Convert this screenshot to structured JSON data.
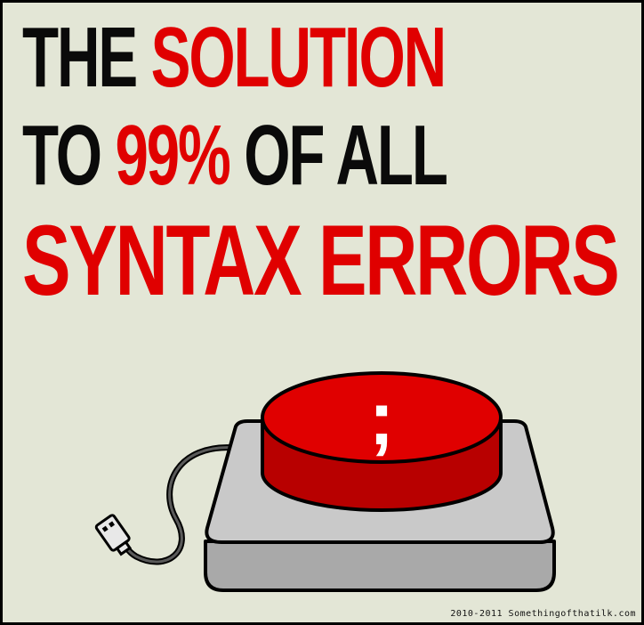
{
  "headline": {
    "line1": {
      "w1": "THE",
      "w2": "SOLUTION"
    },
    "line2": {
      "w1": "TO",
      "w2": "99%",
      "w3": "OF ALL"
    },
    "line3": {
      "w1": "SYNTAX ERRORS"
    }
  },
  "button": {
    "symbol": ";"
  },
  "credit": "2010-2011 Somethingofthatilk.com",
  "colors": {
    "background": "#e3e6d6",
    "red": "#e00000",
    "dark_red": "#b80000",
    "black": "#0a0a0a",
    "base_gray": "#a9a9a9",
    "base_top": "#c9c9c9"
  },
  "icons": [
    "semicolon-button",
    "usb-plug-icon"
  ]
}
